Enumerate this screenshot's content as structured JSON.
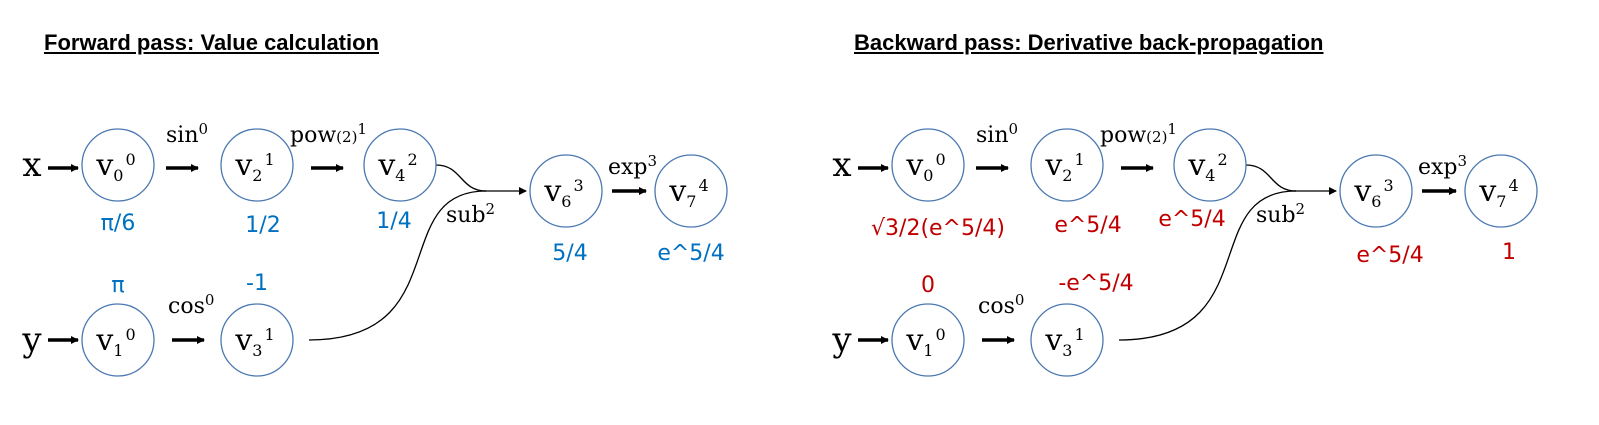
{
  "colors": {
    "node_stroke": "#4a78b0",
    "forward_value": "#0070c0",
    "backward_value": "#c00000",
    "text": "#000000"
  },
  "panels": [
    {
      "title": "Forward pass: Value calculation",
      "kind": "forward",
      "inputs": [
        {
          "id": "x",
          "label": "x"
        },
        {
          "id": "y",
          "label": "y"
        }
      ],
      "nodes": [
        {
          "id": "v0",
          "base": "v",
          "sub": "0",
          "sup": "0",
          "value": "π/6"
        },
        {
          "id": "v1",
          "base": "v",
          "sub": "1",
          "sup": "0",
          "value": "π"
        },
        {
          "id": "v2",
          "base": "v",
          "sub": "2",
          "sup": "1",
          "value": "1/2"
        },
        {
          "id": "v3",
          "base": "v",
          "sub": "3",
          "sup": "1",
          "value": "-1"
        },
        {
          "id": "v4",
          "base": "v",
          "sub": "4",
          "sup": "2",
          "value": "1/4"
        },
        {
          "id": "v6",
          "base": "v",
          "sub": "6",
          "sup": "3",
          "value": "5/4"
        },
        {
          "id": "v7",
          "base": "v",
          "sub": "7",
          "sup": "4",
          "value": "e^5/4"
        }
      ],
      "ops": [
        {
          "id": "sin",
          "name": "sin",
          "sup": "0"
        },
        {
          "id": "cos",
          "name": "cos",
          "sup": "0"
        },
        {
          "id": "pow",
          "name": "pow",
          "arg": "(2)",
          "sup": "1"
        },
        {
          "id": "sub",
          "name": "sub",
          "sup": "2"
        },
        {
          "id": "exp",
          "name": "exp",
          "sup": "3"
        }
      ]
    },
    {
      "title": "Backward pass: Derivative back-propagation",
      "kind": "backward",
      "inputs": [
        {
          "id": "x",
          "label": "x"
        },
        {
          "id": "y",
          "label": "y"
        }
      ],
      "nodes": [
        {
          "id": "v0",
          "base": "v",
          "sub": "0",
          "sup": "0",
          "value": "√3/2(e^5/4)"
        },
        {
          "id": "v1",
          "base": "v",
          "sub": "1",
          "sup": "0",
          "value": "0"
        },
        {
          "id": "v2",
          "base": "v",
          "sub": "2",
          "sup": "1",
          "value": "e^5/4"
        },
        {
          "id": "v3",
          "base": "v",
          "sub": "3",
          "sup": "1",
          "value": "-e^5/4"
        },
        {
          "id": "v4",
          "base": "v",
          "sub": "4",
          "sup": "2",
          "value": "e^5/4"
        },
        {
          "id": "v6",
          "base": "v",
          "sub": "6",
          "sup": "3",
          "value": "e^5/4"
        },
        {
          "id": "v7",
          "base": "v",
          "sub": "7",
          "sup": "4",
          "value": "1"
        }
      ],
      "ops": [
        {
          "id": "sin",
          "name": "sin",
          "sup": "0"
        },
        {
          "id": "cos",
          "name": "cos",
          "sup": "0"
        },
        {
          "id": "pow",
          "name": "pow",
          "arg": "(2)",
          "sup": "1"
        },
        {
          "id": "sub",
          "name": "sub",
          "sup": "2"
        },
        {
          "id": "exp",
          "name": "exp",
          "sup": "3"
        }
      ]
    }
  ]
}
